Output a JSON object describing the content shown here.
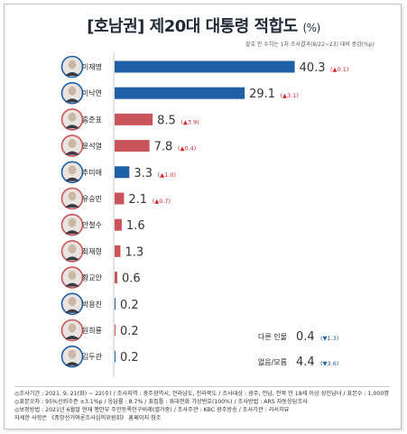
{
  "title": "[호남권] 제20대 대통령 적합도",
  "title_unit": "(%)",
  "note": "괄호 안 수치는 1차 조사결과(8/22~23) 대비 증감(%p)",
  "chart_data": {
    "type": "bar",
    "orientation": "horizontal",
    "categories": [
      "이재명",
      "이낙연",
      "홍준표",
      "윤석열",
      "추미애",
      "유승민",
      "안철수",
      "최재형",
      "황교안",
      "박용진",
      "원희룡",
      "김두관"
    ],
    "values": [
      40.3,
      29.1,
      8.5,
      7.8,
      3.3,
      2.1,
      1.6,
      1.3,
      0.6,
      0.2,
      0.2,
      0.2
    ],
    "value_labels": [
      "40.3",
      "29.1",
      "8.5",
      "7.8",
      "3.3",
      "2.1",
      "1.6",
      "1.3",
      "0.6",
      "0.2",
      "0.2",
      "0.2"
    ],
    "changes": [
      "▲0.1",
      "▲3.1",
      "▲3.9",
      "▲0.4",
      "▲1.0",
      "▲0.7",
      "",
      "",
      "",
      "",
      "",
      ""
    ],
    "bar_colors": [
      "#1f5fa6",
      "#1f5fa6",
      "#c9555a",
      "#c9555a",
      "#1f5fa6",
      "#c9555a",
      "#c9555a",
      "#c9555a",
      "#c9555a",
      "#1f5fa6",
      "#c9555a",
      "#1f5fa6"
    ],
    "extra": [
      {
        "label": "다른 인물",
        "value": "0.4",
        "change": "▼1.3"
      },
      {
        "label": "없음/모름",
        "value": "4.4",
        "change": "▼3.6"
      }
    ],
    "xlim": [
      0,
      42
    ]
  },
  "footer": [
    "◎조사기간 : 2021. 9. 21(화) ~ 22(수) / 조사지역 : 광주광역시, 전라남도, 전라북도 / 조사대상 : 광주, 전남, 전북 만 18세 이상 성인남녀 / 표본수 : 1,000명",
    "◎표본오차 : 95%신뢰수준 ±3.1%p / 응답률 : 8.7% / 표집틀 : 휴대전화 가상번호(100%) / 조사방법 : ARS 자동응답조사",
    "◎보정방법 : 2021년 6월말 현재 행안부 주민등록인구비례(셀가중) / 조사주관 : KBC 광주방송 / 조사기관 : 리서치뷰",
    "자세한 사항은 《중앙선거여론조사심의위원회》 홈페이지 참조"
  ],
  "colors": {
    "blue": "#1f5fa6",
    "red": "#c9555a",
    "up": "#d0282e",
    "down": "#1f5fa6"
  }
}
